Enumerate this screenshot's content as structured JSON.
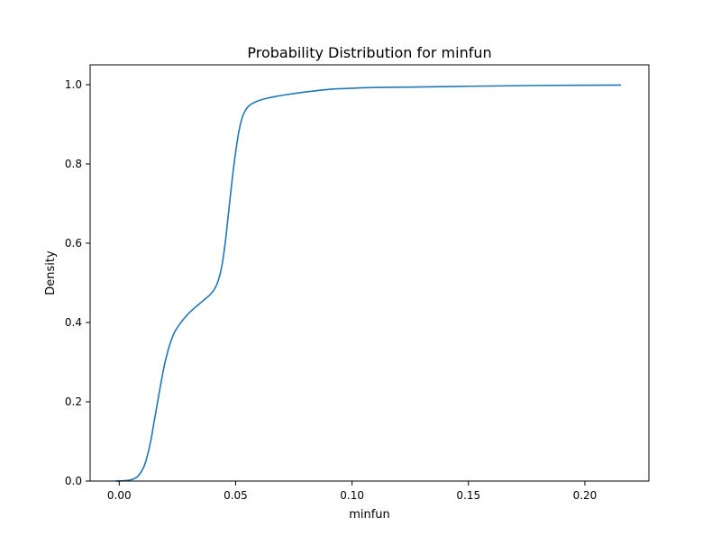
{
  "chart_data": {
    "type": "line",
    "title": "Probability Distribution for minfun",
    "xlabel": "minfun",
    "ylabel": "Density",
    "xlim": [
      -0.0125,
      0.2275
    ],
    "ylim": [
      0,
      1.05
    ],
    "xticks": [
      0.0,
      0.05,
      0.1,
      0.15,
      0.2
    ],
    "xtick_labels": [
      "0.00",
      "0.05",
      "0.10",
      "0.15",
      "0.20"
    ],
    "yticks": [
      0.0,
      0.2,
      0.4,
      0.6,
      0.8,
      1.0
    ],
    "ytick_labels": [
      "0.0",
      "0.2",
      "0.4",
      "0.6",
      "0.8",
      "1.0"
    ],
    "grid": false,
    "legend": false,
    "series": [
      {
        "color": "#1f77b4",
        "x": [
          -0.0015,
          0.0025,
          0.0055,
          0.008,
          0.0105,
          0.012,
          0.0135,
          0.015,
          0.0165,
          0.018,
          0.0195,
          0.021,
          0.0225,
          0.024,
          0.026,
          0.028,
          0.03,
          0.033,
          0.036,
          0.039,
          0.041,
          0.0425,
          0.044,
          0.0455,
          0.047,
          0.0485,
          0.05,
          0.0515,
          0.053,
          0.0545,
          0.056,
          0.058,
          0.06,
          0.063,
          0.067,
          0.072,
          0.078,
          0.085,
          0.092,
          0.1,
          0.11,
          0.125,
          0.15,
          0.18,
          0.2155
        ],
        "y": [
          0.0,
          0.001,
          0.004,
          0.012,
          0.035,
          0.062,
          0.1,
          0.15,
          0.2,
          0.25,
          0.295,
          0.33,
          0.358,
          0.378,
          0.396,
          0.411,
          0.424,
          0.44,
          0.455,
          0.47,
          0.485,
          0.505,
          0.54,
          0.6,
          0.68,
          0.76,
          0.83,
          0.885,
          0.92,
          0.938,
          0.948,
          0.955,
          0.96,
          0.965,
          0.97,
          0.975,
          0.98,
          0.985,
          0.989,
          0.991,
          0.993,
          0.994,
          0.996,
          0.998,
          0.999
        ]
      }
    ]
  }
}
